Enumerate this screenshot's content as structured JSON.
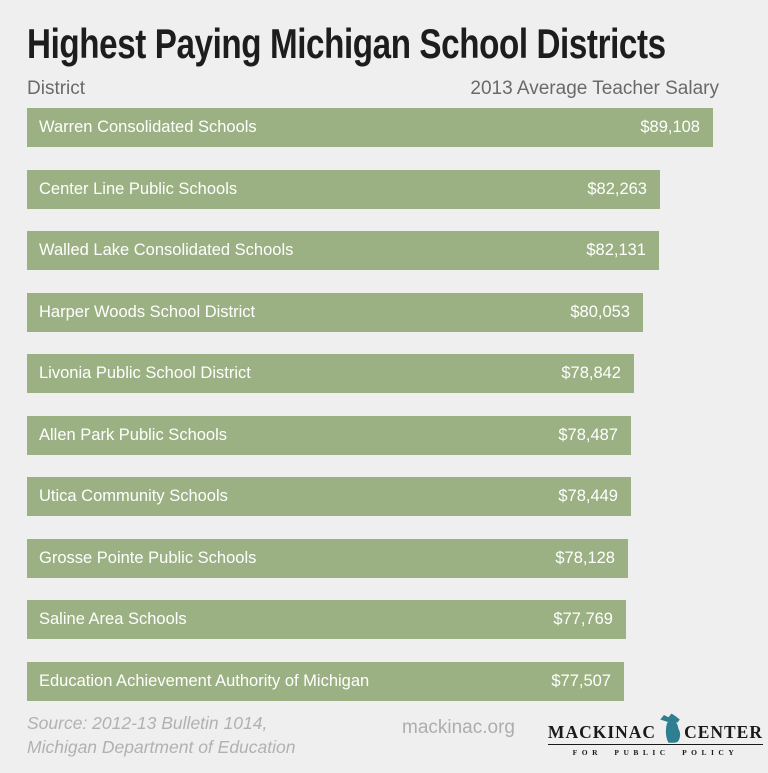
{
  "title": "Highest Paying Michigan School Districts",
  "column_headers": {
    "left": "District",
    "right": "2013 Average Teacher Salary"
  },
  "chart_data": {
    "type": "bar",
    "orientation": "horizontal",
    "title": "Highest Paying Michigan School Districts",
    "xlabel": "2013 Average Teacher Salary",
    "ylabel": "District",
    "xlim": [
      0,
      89108
    ],
    "grid": false,
    "legend": "none",
    "bar_color": "#9bb183",
    "bar_text_color": "#ffffff",
    "categories": [
      "Warren Consolidated Schools",
      "Center Line Public Schools",
      "Walled Lake Consolidated Schools",
      "Harper Woods School District",
      "Livonia Public School District",
      "Allen Park Public Schools",
      "Utica Community Schools",
      "Grosse Pointe Public Schools",
      "Saline Area Schools",
      "Education Achievement Authority of Michigan"
    ],
    "values": [
      89108,
      82263,
      82131,
      80053,
      78842,
      78487,
      78449,
      78128,
      77769,
      77507
    ],
    "value_labels": [
      "$89,108",
      "$82,263",
      "$82,131",
      "$80,053",
      "$78,842",
      "$78,487",
      "$78,449",
      "$78,128",
      "$77,769",
      "$77,507"
    ]
  },
  "footer": {
    "source_line1": "Source: 2012-13 Bulletin 1014,",
    "source_line2": "Michigan Department of Education",
    "website": "mackinac.org",
    "logo": {
      "word1": "MACKINAC",
      "word2": "CENTER",
      "tagline": "FOR PUBLIC POLICY",
      "michigan_icon_color": "#2d7f91"
    }
  },
  "colors": {
    "background": "#efefef",
    "title_text": "#1d1d1d",
    "header_text": "#6a6a6a",
    "footer_text": "#b1b1b1",
    "logo_text": "#1a1a1a"
  }
}
